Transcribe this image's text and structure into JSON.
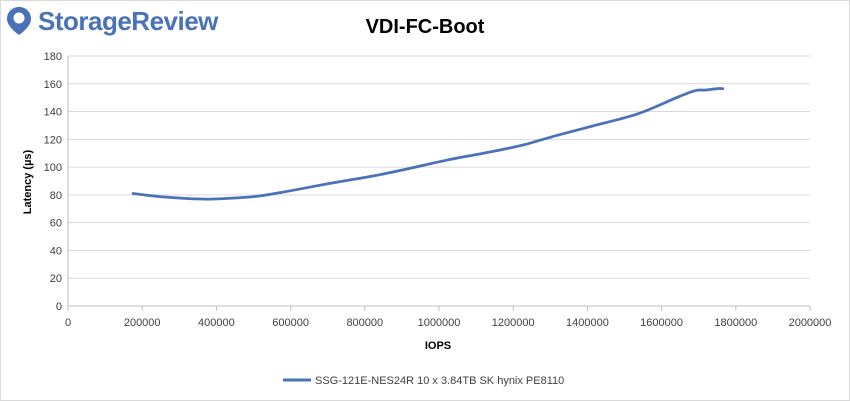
{
  "logo": {
    "text": "StorageReview",
    "icon": "storagereview-pin-icon",
    "color": "#4a72b8"
  },
  "chart_data": {
    "type": "line",
    "title": "VDI-FC-Boot",
    "xlabel": "IOPS",
    "ylabel": "Latency (µs)",
    "xlim": [
      0,
      2000000
    ],
    "ylim": [
      0,
      180
    ],
    "xticks": [
      "0",
      "200000",
      "400000",
      "600000",
      "800000",
      "1000000",
      "1200000",
      "1400000",
      "1600000",
      "1800000",
      "2000000"
    ],
    "yticks": [
      "0",
      "20",
      "40",
      "60",
      "80",
      "100",
      "120",
      "140",
      "160",
      "180"
    ],
    "grid": "horizontal",
    "legend_position": "bottom",
    "series": [
      {
        "name": "SSG-121E-NES24R  10 x 3.84TB SK hynix PE8110",
        "color": "#4a72b8",
        "x": [
          175000,
          260000,
          360000,
          430000,
          510000,
          590000,
          700000,
          820000,
          920000,
          1020000,
          1120000,
          1220000,
          1320000,
          1420000,
          1520000,
          1580000,
          1640000,
          1690000,
          1720000,
          1750000,
          1765000
        ],
        "y": [
          81,
          78.5,
          77,
          77.5,
          79,
          82.5,
          88,
          93.5,
          99,
          105,
          110,
          115.5,
          123,
          130,
          137,
          143,
          150,
          155,
          155.5,
          156.5,
          156.5
        ]
      }
    ]
  }
}
